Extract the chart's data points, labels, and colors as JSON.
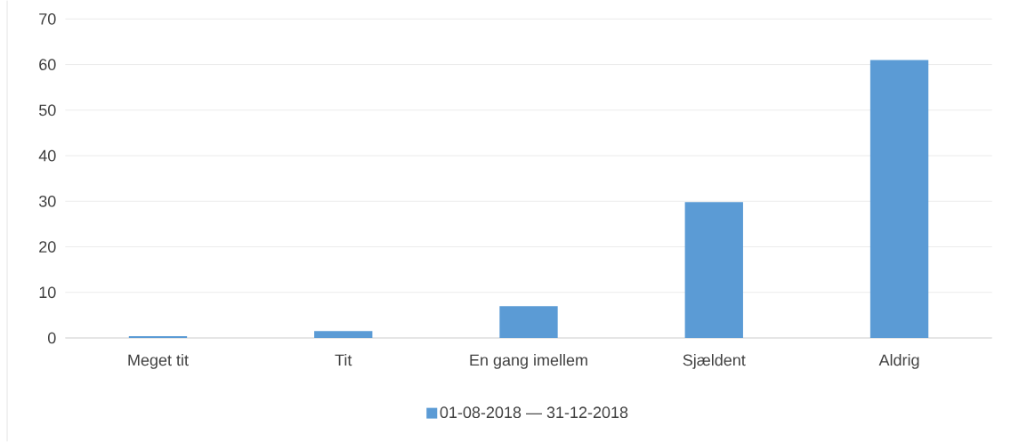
{
  "chart_data": {
    "type": "bar",
    "categories": [
      "Meget tit",
      "Tit",
      "En gang imellem",
      "Sjældent",
      "Aldrig"
    ],
    "series": [
      {
        "name": "01-08-2018 — 31-12-2018",
        "color": "#5b9bd5",
        "values": [
          0.4,
          1.5,
          7,
          29.8,
          61
        ]
      }
    ],
    "ylim": [
      0,
      70
    ],
    "yticks": [
      0,
      10,
      20,
      30,
      40,
      50,
      60,
      70
    ],
    "grid": "y",
    "legend": "bottom"
  }
}
